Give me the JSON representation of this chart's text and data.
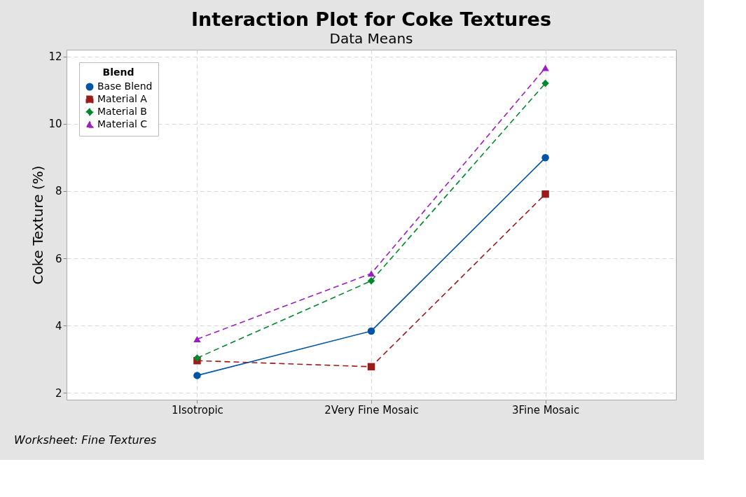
{
  "chart_data": {
    "type": "line",
    "title": "Interaction Plot for Coke Textures",
    "subtitle": "Data Means",
    "ylabel": "Coke Texture (%)",
    "legend_title": "Blend",
    "categories": [
      "1Isotropic",
      "2Very Fine Mosaic",
      "3Fine Mosaic"
    ],
    "series": [
      {
        "name": "Base Blend",
        "color": "#0054a6",
        "values": [
          2.52,
          3.84,
          8.99
        ],
        "marker": "circle",
        "line_style": "solid"
      },
      {
        "name": "Material A",
        "color": "#9b1b1b",
        "values": [
          2.96,
          2.78,
          7.91
        ],
        "marker": "square",
        "line_style": "dashed"
      },
      {
        "name": "Material B",
        "color": "#00882b",
        "values": [
          3.04,
          5.33,
          11.2
        ],
        "marker": "diamond",
        "line_style": "dashed"
      },
      {
        "name": "Material C",
        "color": "#9b1fc0",
        "values": [
          3.6,
          5.55,
          11.66
        ],
        "marker": "triangle",
        "line_style": "dashed"
      }
    ],
    "ylim": [
      1.8,
      12.2
    ],
    "yticks": [
      2,
      4,
      6,
      8,
      10,
      12
    ],
    "grid": true,
    "legend": "top left",
    "annotations": [
      "Worksheet: Fine Textures"
    ]
  }
}
